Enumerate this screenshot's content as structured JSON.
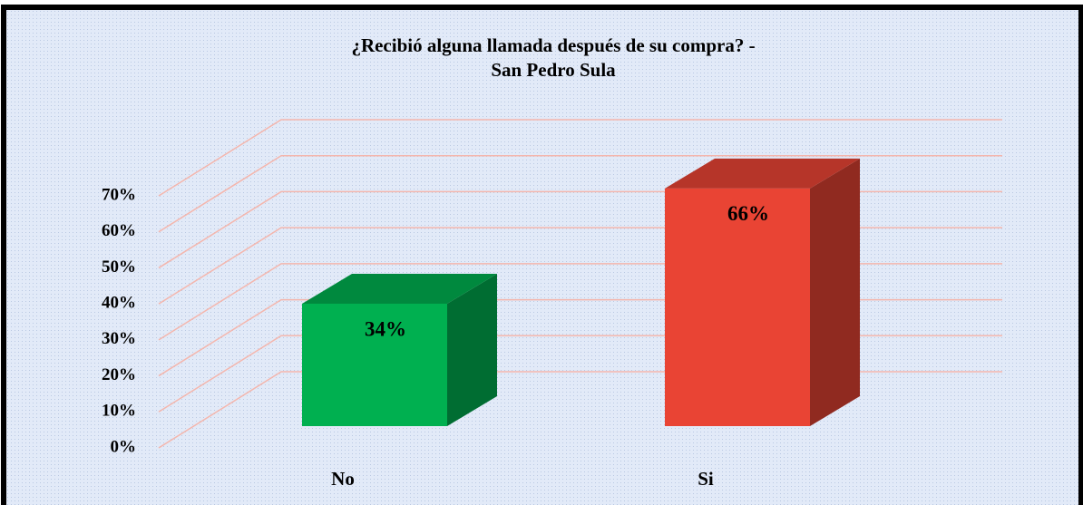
{
  "chart_data": {
    "type": "bar3d",
    "title": "¿Recibió alguna llamada después de su compra? -",
    "subtitle": "San Pedro Sula",
    "categories": [
      "No",
      "Si"
    ],
    "values": [
      34,
      66
    ],
    "value_labels": [
      "34%",
      "66%"
    ],
    "colors": [
      "#00b050",
      "#e94434"
    ],
    "ylim": [
      0,
      70
    ],
    "yticks": [
      {
        "value": 0,
        "label": "0%"
      },
      {
        "value": 10,
        "label": "10%"
      },
      {
        "value": 20,
        "label": "20%"
      },
      {
        "value": 30,
        "label": "30%"
      },
      {
        "value": 40,
        "label": "40%"
      },
      {
        "value": 50,
        "label": "50%"
      },
      {
        "value": 60,
        "label": "60%"
      },
      {
        "value": 70,
        "label": "70%"
      }
    ],
    "grid": true
  }
}
